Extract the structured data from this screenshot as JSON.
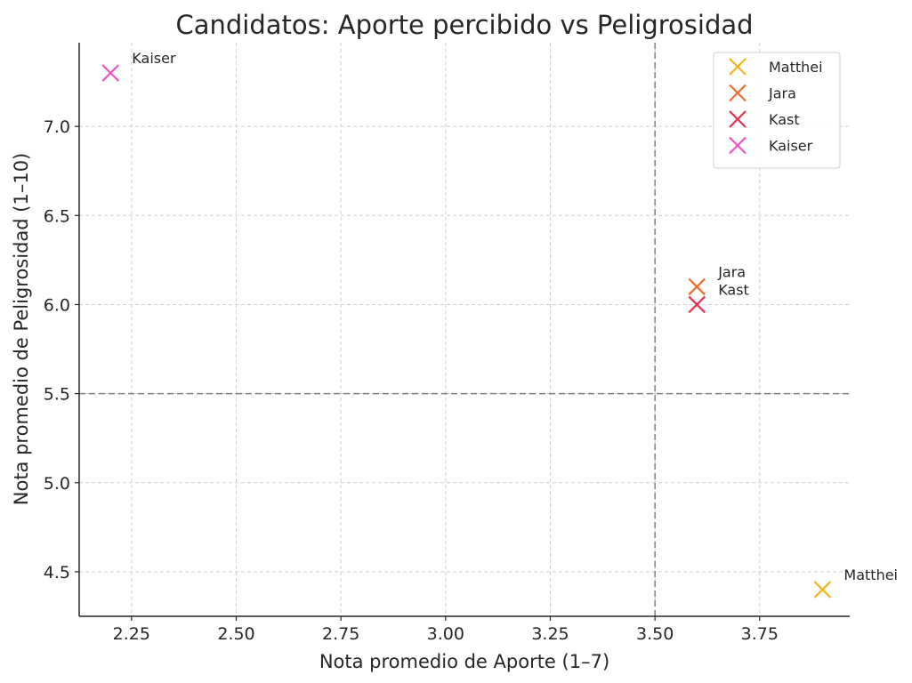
{
  "chart_data": {
    "type": "scatter",
    "title": "Candidatos: Aporte percibido vs Peligrosidad",
    "xlabel": "Nota promedio de Aporte (1–7)",
    "ylabel": "Nota promedio de Peligrosidad (1–10)",
    "xlim": [
      2.125,
      3.965
    ],
    "ylim": [
      4.25,
      7.47
    ],
    "xticks": [
      2.25,
      2.5,
      2.75,
      3.0,
      3.25,
      3.5,
      3.75
    ],
    "xtick_labels": [
      "2.25",
      "2.50",
      "2.75",
      "3.00",
      "3.25",
      "3.50",
      "3.75"
    ],
    "yticks": [
      4.5,
      5.0,
      5.5,
      6.0,
      6.5,
      7.0
    ],
    "ytick_labels": [
      "4.5",
      "5.0",
      "5.5",
      "6.0",
      "6.5",
      "7.0"
    ],
    "grid": true,
    "reference_lines": {
      "x": 3.5,
      "y": 5.5
    },
    "legend_position": "top-right",
    "marker": "x",
    "series": [
      {
        "name": "Matthei",
        "color": "#f6b31b",
        "points": [
          {
            "x": 3.9,
            "y": 4.4
          }
        ]
      },
      {
        "name": "Jara",
        "color": "#ef6c2e",
        "points": [
          {
            "x": 3.6,
            "y": 6.1
          }
        ]
      },
      {
        "name": "Kast",
        "color": "#e8334e",
        "points": [
          {
            "x": 3.6,
            "y": 6.0
          }
        ]
      },
      {
        "name": "Kaiser",
        "color": "#ee52c6",
        "points": [
          {
            "x": 2.2,
            "y": 7.3
          }
        ]
      }
    ],
    "annotations": [
      {
        "text": "Matthei",
        "x": 3.9,
        "y": 4.4
      },
      {
        "text": "Jara",
        "x": 3.6,
        "y": 6.1
      },
      {
        "text": "Kast",
        "x": 3.6,
        "y": 6.0
      },
      {
        "text": "Kaiser",
        "x": 2.2,
        "y": 7.3
      }
    ]
  }
}
